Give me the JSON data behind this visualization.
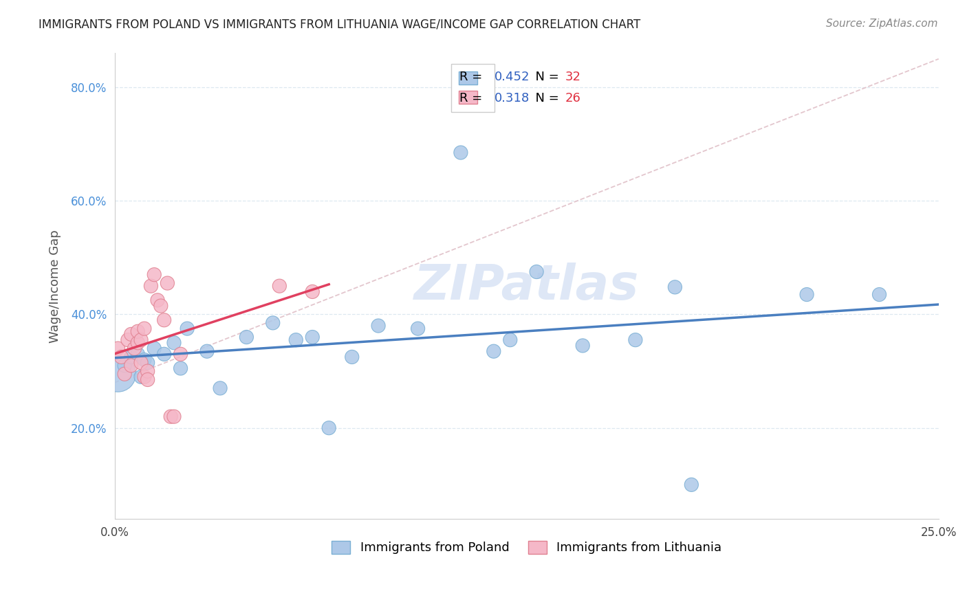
{
  "title": "IMMIGRANTS FROM POLAND VS IMMIGRANTS FROM LITHUANIA WAGE/INCOME GAP CORRELATION CHART",
  "source": "Source: ZipAtlas.com",
  "ylabel": "Wage/Income Gap",
  "xlim": [
    0.0,
    0.25
  ],
  "ylim": [
    0.04,
    0.86
  ],
  "xticks": [
    0.0,
    0.05,
    0.1,
    0.15,
    0.2,
    0.25
  ],
  "xtick_labels": [
    "0.0%",
    "",
    "",
    "",
    "",
    "25.0%"
  ],
  "yticks": [
    0.2,
    0.4,
    0.6,
    0.8
  ],
  "ytick_labels": [
    "20.0%",
    "40.0%",
    "60.0%",
    "80.0%"
  ],
  "poland_color": "#adc8e8",
  "poland_edge": "#7aafd4",
  "lithuania_color": "#f5b8c8",
  "lithuania_edge": "#e08090",
  "poland_line_color": "#4a7fc0",
  "lithuania_line_color": "#e04060",
  "diagonal_color": "#e0c0c8",
  "poland_R": 0.452,
  "poland_N": 32,
  "lithuania_R": 0.318,
  "lithuania_N": 26,
  "legend_R_color": "#3060c0",
  "legend_N_color": "#e03040",
  "watermark": "ZIPatlas",
  "watermark_color": "#c8d8f0",
  "poland_x": [
    0.001,
    0.003,
    0.005,
    0.007,
    0.008,
    0.009,
    0.01,
    0.012,
    0.015,
    0.018,
    0.02,
    0.022,
    0.028,
    0.032,
    0.04,
    0.048,
    0.055,
    0.06,
    0.065,
    0.072,
    0.08,
    0.092,
    0.105,
    0.115,
    0.12,
    0.128,
    0.142,
    0.158,
    0.17,
    0.175,
    0.21,
    0.232
  ],
  "poland_y": [
    0.295,
    0.31,
    0.325,
    0.33,
    0.29,
    0.32,
    0.315,
    0.34,
    0.33,
    0.35,
    0.305,
    0.375,
    0.335,
    0.27,
    0.36,
    0.385,
    0.355,
    0.36,
    0.2,
    0.325,
    0.38,
    0.375,
    0.685,
    0.335,
    0.355,
    0.475,
    0.345,
    0.355,
    0.448,
    0.1,
    0.435,
    0.435
  ],
  "poland_sizes": [
    30,
    30,
    30,
    30,
    30,
    30,
    30,
    30,
    30,
    30,
    30,
    30,
    30,
    30,
    30,
    30,
    30,
    30,
    30,
    30,
    30,
    30,
    30,
    30,
    30,
    30,
    30,
    30,
    30,
    30,
    30,
    30
  ],
  "poland_big_idx": 0,
  "poland_big_size": 200,
  "lithuania_x": [
    0.001,
    0.002,
    0.003,
    0.004,
    0.005,
    0.005,
    0.006,
    0.007,
    0.007,
    0.008,
    0.008,
    0.009,
    0.009,
    0.01,
    0.01,
    0.011,
    0.012,
    0.013,
    0.014,
    0.015,
    0.016,
    0.017,
    0.018,
    0.02,
    0.05,
    0.06
  ],
  "lithuania_y": [
    0.34,
    0.325,
    0.295,
    0.355,
    0.365,
    0.31,
    0.34,
    0.35,
    0.37,
    0.315,
    0.355,
    0.29,
    0.375,
    0.3,
    0.285,
    0.45,
    0.47,
    0.425,
    0.415,
    0.39,
    0.455,
    0.22,
    0.22,
    0.33,
    0.45,
    0.44
  ],
  "lithuania_sizes": [
    30,
    30,
    30,
    30,
    30,
    30,
    30,
    30,
    30,
    30,
    30,
    30,
    30,
    30,
    30,
    30,
    30,
    30,
    30,
    30,
    30,
    30,
    30,
    30,
    30,
    30
  ],
  "background_color": "#ffffff",
  "grid_color": "#dde8f0"
}
